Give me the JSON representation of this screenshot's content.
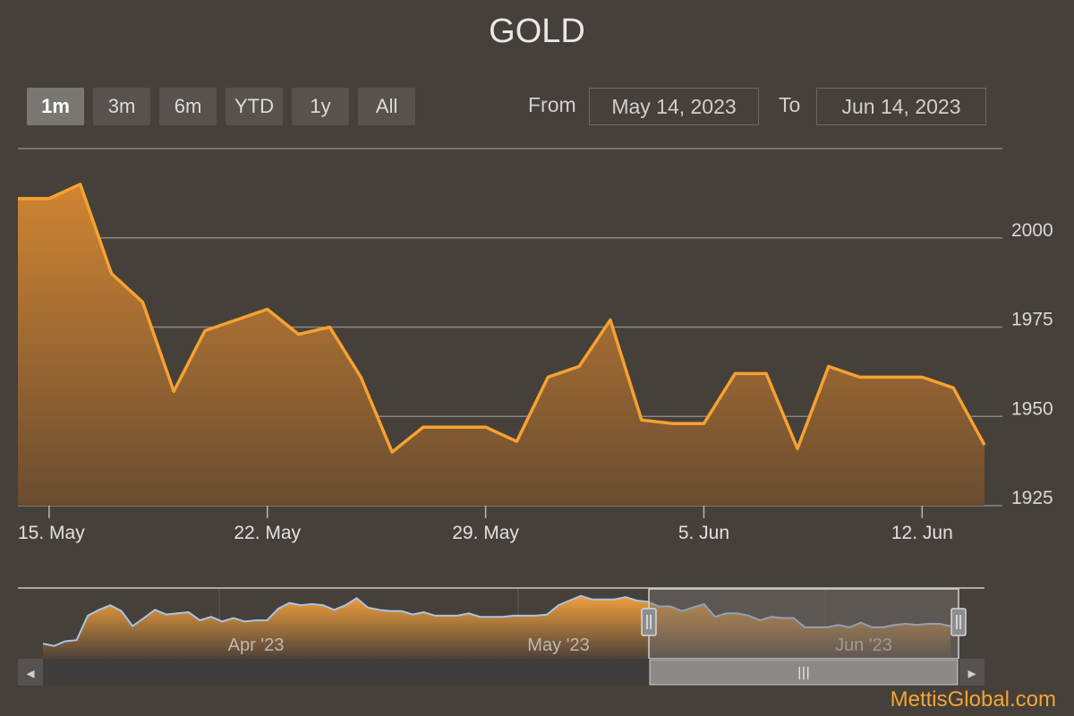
{
  "title": "GOLD",
  "range_selector": {
    "buttons": [
      {
        "label": "1m",
        "active": true
      },
      {
        "label": "3m",
        "active": false
      },
      {
        "label": "6m",
        "active": false
      },
      {
        "label": "YTD",
        "active": false
      },
      {
        "label": "1y",
        "active": false
      },
      {
        "label": "All",
        "active": false
      }
    ],
    "from_label": "From",
    "from_value": "May 14, 2023",
    "to_label": "To",
    "to_value": "Jun 14, 2023"
  },
  "colors": {
    "line": "#f7a130",
    "fill_top": "#d08532",
    "background": "#46403b",
    "navigator_line": "#a9c4e6"
  },
  "chart_data": {
    "type": "area",
    "title": "GOLD",
    "x": [
      "2023-05-14",
      "2023-05-15",
      "2023-05-16",
      "2023-05-17",
      "2023-05-18",
      "2023-05-19",
      "2023-05-20",
      "2023-05-21",
      "2023-05-22",
      "2023-05-23",
      "2023-05-24",
      "2023-05-25",
      "2023-05-26",
      "2023-05-27",
      "2023-05-28",
      "2023-05-29",
      "2023-05-30",
      "2023-05-31",
      "2023-06-01",
      "2023-06-02",
      "2023-06-03",
      "2023-06-04",
      "2023-06-05",
      "2023-06-06",
      "2023-06-07",
      "2023-06-08",
      "2023-06-09",
      "2023-06-10",
      "2023-06-11",
      "2023-06-12",
      "2023-06-13",
      "2023-06-14"
    ],
    "values": [
      2011,
      2011,
      2015,
      1990,
      1982,
      1957,
      1974,
      1977,
      1980,
      1973,
      1975,
      1961,
      1940,
      1947,
      1947,
      1947,
      1943,
      1961,
      1964,
      1977,
      1949,
      1948,
      1948,
      1962,
      1962,
      1941,
      1964,
      1961,
      1961,
      1961,
      1958,
      1942
    ],
    "ylim": [
      1925,
      2025
    ],
    "y_ticks": [
      "1925",
      "1950",
      "1975",
      "2000"
    ],
    "x_ticks": [
      {
        "label": "15. May",
        "date": "2023-05-15"
      },
      {
        "label": "22. May",
        "date": "2023-05-22"
      },
      {
        "label": "29. May",
        "date": "2023-05-29"
      },
      {
        "label": "5. Jun",
        "date": "2023-06-05"
      },
      {
        "label": "12. Jun",
        "date": "2023-06-12"
      }
    ],
    "grid": true,
    "navigator": {
      "labels": [
        "Apr '23",
        "May '23",
        "Jun '23"
      ],
      "values": [
        1918,
        1916,
        1920,
        1921,
        1942,
        1947,
        1951,
        1946,
        1933,
        1940,
        1947,
        1943,
        1944,
        1945,
        1938,
        1941,
        1937,
        1940,
        1937,
        1938,
        1938,
        1948,
        1953,
        1951,
        1952,
        1951,
        1947,
        1951,
        1957,
        1949,
        1947,
        1946,
        1946,
        1943,
        1945,
        1942,
        1942,
        1942,
        1944,
        1941,
        1941,
        1941,
        1942,
        1942,
        1942,
        1943,
        1951,
        1955,
        1959,
        1956,
        1956,
        1956,
        1958,
        1955,
        1954,
        1950,
        1950,
        1946,
        1949,
        1952,
        1941,
        1944,
        1944,
        1942,
        1938,
        1941,
        1940,
        1940,
        1932,
        1932,
        1932,
        1934,
        1932,
        1936,
        1932,
        1932,
        1934,
        1935,
        1934,
        1935,
        1935,
        1933
      ]
    }
  },
  "navigator_scrollbar": {
    "left_arrow": "◂",
    "right_arrow": "▸",
    "grip": "|||"
  },
  "watermark": "MettisGlobal.com"
}
